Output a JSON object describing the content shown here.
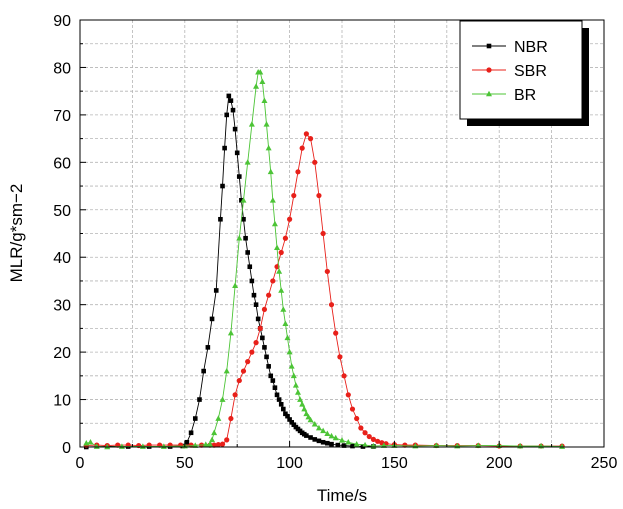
{
  "chart_data": {
    "type": "line",
    "title": "",
    "xlabel": "Time/s",
    "ylabel": "MLR/g*sm−2",
    "xlim": [
      0,
      250
    ],
    "ylim": [
      0,
      90
    ],
    "xticks": [
      0,
      50,
      100,
      150,
      200,
      250
    ],
    "yticks": [
      0,
      10,
      20,
      30,
      40,
      50,
      60,
      70,
      80,
      90
    ],
    "xtick_labels": [
      "0",
      "50",
      "100",
      "150",
      "200",
      "250"
    ],
    "ytick_labels": [
      "0",
      "10",
      "20",
      "30",
      "40",
      "50",
      "60",
      "70",
      "80",
      "90"
    ],
    "grid": true,
    "legend_position": "top-right",
    "series": [
      {
        "name": "NBR",
        "color": "#000000",
        "marker": "square",
        "points": [
          [
            3,
            0
          ],
          [
            13,
            0.1
          ],
          [
            23,
            0.1
          ],
          [
            33,
            0.1
          ],
          [
            43,
            0.1
          ],
          [
            49,
            0.2
          ],
          [
            51,
            1
          ],
          [
            53,
            3
          ],
          [
            55,
            6
          ],
          [
            57,
            10
          ],
          [
            59,
            16
          ],
          [
            61,
            21
          ],
          [
            63,
            27
          ],
          [
            65,
            33
          ],
          [
            67,
            48
          ],
          [
            68,
            55
          ],
          [
            69,
            63
          ],
          [
            70,
            70
          ],
          [
            71,
            74
          ],
          [
            72,
            73
          ],
          [
            73,
            71
          ],
          [
            74,
            67
          ],
          [
            75,
            62
          ],
          [
            76,
            57
          ],
          [
            77,
            52
          ],
          [
            78,
            48
          ],
          [
            79,
            44
          ],
          [
            80,
            41
          ],
          [
            81,
            38
          ],
          [
            82,
            35
          ],
          [
            83,
            32
          ],
          [
            84,
            30
          ],
          [
            85,
            27
          ],
          [
            86,
            25
          ],
          [
            87,
            23
          ],
          [
            88,
            21
          ],
          [
            89,
            19
          ],
          [
            90,
            17
          ],
          [
            91,
            15
          ],
          [
            92,
            14
          ],
          [
            93,
            12.5
          ],
          [
            94,
            11
          ],
          [
            95,
            10
          ],
          [
            96,
            9
          ],
          [
            97,
            8
          ],
          [
            98,
            7
          ],
          [
            99,
            6.5
          ],
          [
            100,
            5.8
          ],
          [
            101,
            5.2
          ],
          [
            102,
            4.7
          ],
          [
            103,
            4.2
          ],
          [
            104,
            3.8
          ],
          [
            105,
            3.4
          ],
          [
            106,
            3
          ],
          [
            107,
            2.7
          ],
          [
            108,
            2.4
          ],
          [
            110,
            2
          ],
          [
            112,
            1.6
          ],
          [
            114,
            1.3
          ],
          [
            116,
            1
          ],
          [
            118,
            0.8
          ],
          [
            120,
            0.6
          ],
          [
            123,
            0.4
          ],
          [
            126,
            0.3
          ],
          [
            130,
            0.2
          ],
          [
            135,
            0.1
          ],
          [
            140,
            0.1
          ]
        ]
      },
      {
        "name": "SBR",
        "color": "#e8201a",
        "marker": "circle",
        "points": [
          [
            3,
            0.3
          ],
          [
            8,
            0.4
          ],
          [
            13,
            0.3
          ],
          [
            18,
            0.4
          ],
          [
            23,
            0.4
          ],
          [
            28,
            0.3
          ],
          [
            33,
            0.4
          ],
          [
            38,
            0.4
          ],
          [
            43,
            0.4
          ],
          [
            48,
            0.4
          ],
          [
            53,
            0.4
          ],
          [
            58,
            0.4
          ],
          [
            62,
            0.4
          ],
          [
            64,
            0.4
          ],
          [
            66,
            0.5
          ],
          [
            68,
            0.6
          ],
          [
            70,
            1.5
          ],
          [
            72,
            6
          ],
          [
            74,
            11
          ],
          [
            76,
            14
          ],
          [
            78,
            16
          ],
          [
            80,
            18
          ],
          [
            82,
            20
          ],
          [
            84,
            22
          ],
          [
            86,
            25
          ],
          [
            88,
            29
          ],
          [
            90,
            32
          ],
          [
            92,
            35
          ],
          [
            94,
            38
          ],
          [
            96,
            41
          ],
          [
            98,
            44
          ],
          [
            100,
            48
          ],
          [
            102,
            53
          ],
          [
            104,
            58
          ],
          [
            106,
            63
          ],
          [
            108,
            66
          ],
          [
            110,
            65
          ],
          [
            112,
            60
          ],
          [
            114,
            53
          ],
          [
            116,
            45
          ],
          [
            118,
            37
          ],
          [
            120,
            30
          ],
          [
            122,
            24
          ],
          [
            124,
            19
          ],
          [
            126,
            15
          ],
          [
            128,
            11
          ],
          [
            130,
            8
          ],
          [
            132,
            6
          ],
          [
            134,
            4
          ],
          [
            136,
            3
          ],
          [
            138,
            2.2
          ],
          [
            140,
            1.6
          ],
          [
            142,
            1.2
          ],
          [
            144,
            0.9
          ],
          [
            146,
            0.7
          ],
          [
            150,
            0.5
          ],
          [
            155,
            0.4
          ],
          [
            160,
            0.4
          ],
          [
            170,
            0.3
          ],
          [
            180,
            0.3
          ],
          [
            190,
            0.3
          ],
          [
            200,
            0.2
          ],
          [
            210,
            0.2
          ],
          [
            220,
            0.2
          ],
          [
            230,
            0.2
          ]
        ]
      },
      {
        "name": "BR",
        "color": "#4cc436",
        "marker": "triangle",
        "points": [
          [
            3,
            0.8
          ],
          [
            5,
            1
          ],
          [
            8,
            0.1
          ],
          [
            13,
            0
          ],
          [
            20,
            0.1
          ],
          [
            30,
            0.1
          ],
          [
            40,
            0.1
          ],
          [
            50,
            0.2
          ],
          [
            55,
            0.3
          ],
          [
            60,
            0.5
          ],
          [
            62,
            0.6
          ],
          [
            63,
            1.5
          ],
          [
            64,
            3
          ],
          [
            66,
            6
          ],
          [
            68,
            10
          ],
          [
            70,
            16
          ],
          [
            72,
            24
          ],
          [
            74,
            34
          ],
          [
            76,
            44
          ],
          [
            78,
            52
          ],
          [
            80,
            60
          ],
          [
            82,
            68
          ],
          [
            84,
            76
          ],
          [
            85,
            79
          ],
          [
            86,
            79
          ],
          [
            87,
            77
          ],
          [
            88,
            73
          ],
          [
            89,
            68
          ],
          [
            90,
            63
          ],
          [
            91,
            58
          ],
          [
            92,
            52
          ],
          [
            93,
            47
          ],
          [
            94,
            42
          ],
          [
            95,
            37
          ],
          [
            96,
            33
          ],
          [
            97,
            29
          ],
          [
            98,
            26
          ],
          [
            99,
            23
          ],
          [
            100,
            20
          ],
          [
            101,
            17
          ],
          [
            102,
            15
          ],
          [
            103,
            13
          ],
          [
            104,
            11.5
          ],
          [
            105,
            10
          ],
          [
            106,
            9
          ],
          [
            107,
            8
          ],
          [
            108,
            7
          ],
          [
            109,
            6.3
          ],
          [
            110,
            5.7
          ],
          [
            112,
            4.8
          ],
          [
            114,
            4
          ],
          [
            116,
            3.4
          ],
          [
            118,
            2.8
          ],
          [
            120,
            2.3
          ],
          [
            122,
            1.9
          ],
          [
            125,
            1.4
          ],
          [
            128,
            1
          ],
          [
            132,
            0.6
          ],
          [
            136,
            0.4
          ],
          [
            140,
            0.2
          ],
          [
            145,
            0.3
          ],
          [
            150,
            0.3
          ],
          [
            160,
            0.2
          ],
          [
            170,
            0.3
          ],
          [
            180,
            0.2
          ],
          [
            190,
            0.3
          ],
          [
            200,
            0.3
          ],
          [
            210,
            0.2
          ],
          [
            220,
            0.2
          ],
          [
            230,
            0.1
          ]
        ]
      }
    ]
  }
}
